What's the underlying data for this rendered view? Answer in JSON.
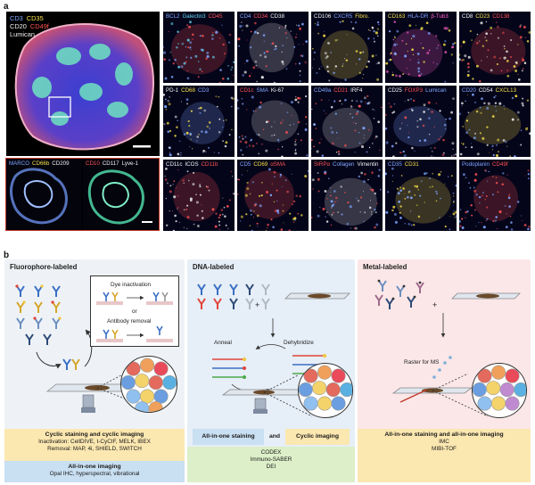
{
  "panel_a": {
    "letter": "a",
    "big_tile_labels": [
      [
        {
          "text": "CD3",
          "color": "blue"
        },
        {
          "text": "CD35",
          "color": "yellow"
        }
      ],
      [
        {
          "text": "CD20",
          "color": "white"
        },
        {
          "text": "CD49f",
          "color": "red"
        }
      ],
      [
        {
          "text": "Lumican",
          "color": "white"
        }
      ]
    ],
    "inset_tiles": [
      [
        {
          "text": "MARCO",
          "color": "blue"
        },
        {
          "text": "CD66b",
          "color": "yellow"
        },
        {
          "text": "CD209",
          "color": "white"
        }
      ],
      [
        {
          "text": "CD10",
          "color": "red"
        },
        {
          "text": "CD117",
          "color": "white"
        },
        {
          "text": "Lyve-1",
          "color": "white"
        }
      ]
    ],
    "grid_rows": [
      [
        [
          {
            "text": "BCL2",
            "color": "blue"
          },
          {
            "text": "Galectin3",
            "color": "cyan"
          },
          {
            "text": "CD45",
            "color": "red"
          }
        ],
        [
          {
            "text": "CD4",
            "color": "blue"
          },
          {
            "text": "CD34",
            "color": "red"
          },
          {
            "text": "CD38",
            "color": "white"
          }
        ],
        [
          {
            "text": "CD106",
            "color": "white"
          },
          {
            "text": "CXCR5",
            "color": "blue"
          },
          {
            "text": "Fibro.",
            "color": "yellow"
          }
        ],
        [
          {
            "text": "CD163",
            "color": "yellow"
          },
          {
            "text": "HLA-DR",
            "color": "blue"
          },
          {
            "text": "β-Tub3",
            "color": "pink"
          }
        ],
        [
          {
            "text": "CD8",
            "color": "white"
          },
          {
            "text": "CD23",
            "color": "yellow"
          },
          {
            "text": "CD138",
            "color": "red"
          }
        ]
      ],
      [
        [
          {
            "text": "PD-1",
            "color": "white"
          },
          {
            "text": "CD68",
            "color": "yellow"
          },
          {
            "text": "CD3",
            "color": "blue"
          }
        ],
        [
          {
            "text": "CD1c",
            "color": "red"
          },
          {
            "text": "SMA",
            "color": "blue"
          },
          {
            "text": "Ki-67",
            "color": "white"
          }
        ],
        [
          {
            "text": "CD49a",
            "color": "blue"
          },
          {
            "text": "CD21",
            "color": "red"
          },
          {
            "text": "IRF4",
            "color": "white"
          }
        ],
        [
          {
            "text": "CD25",
            "color": "white"
          },
          {
            "text": "FOXP3",
            "color": "red"
          },
          {
            "text": "Lumican",
            "color": "blue"
          }
        ],
        [
          {
            "text": "CD20",
            "color": "blue"
          },
          {
            "text": "CD54",
            "color": "white"
          },
          {
            "text": "CXCL13",
            "color": "yellow"
          }
        ]
      ],
      [
        [
          {
            "text": "CD11c",
            "color": "white"
          },
          {
            "text": "ICOS",
            "color": "white"
          },
          {
            "text": "CD11b",
            "color": "red"
          }
        ],
        [
          {
            "text": "CD5",
            "color": "blue"
          },
          {
            "text": "CD69",
            "color": "yellow"
          },
          {
            "text": "αSMA",
            "color": "red"
          }
        ],
        [
          {
            "text": "SIRPα",
            "color": "red"
          },
          {
            "text": "Collagen",
            "color": "blue"
          },
          {
            "text": "Vimentin",
            "color": "white"
          }
        ],
        [
          {
            "text": "CD35",
            "color": "blue"
          },
          {
            "text": "CD31",
            "color": "yellow"
          }
        ],
        [
          {
            "text": "Podoplanin",
            "color": "blue"
          },
          {
            "text": "CD49f",
            "color": "red"
          }
        ]
      ]
    ]
  },
  "panel_b": {
    "letter": "b",
    "fluorophore": {
      "title": "Fluorophore-labeled",
      "dye_inactivation": "Dye inactivation",
      "or": "or",
      "antibody_removal": "Antibody removal",
      "band1_title": "Cyclic staining and cyclic imaging",
      "band1_line1": "Inactivation: CellDIVE, t-CyCIF, MELK, IBEX",
      "band1_line2": "Removal: MAP, 4i, SHIELD, SWITCH",
      "band2_title": "All-in-one imaging",
      "band2_line1": "Opal IHC, hyperspectral, vibrational"
    },
    "dna": {
      "title": "DNA-labeled",
      "plus": "+",
      "anneal": "Anneal",
      "dehybridize": "Dehybridize",
      "band_left": "All-in-one staining",
      "band_and": "and",
      "band_right": "Cyclic imaging",
      "methods": [
        "CODEX",
        "Immuno-SABER",
        "DEI"
      ]
    },
    "metal": {
      "title": "Metal-labeled",
      "plus": "+",
      "raster": "Raster for MS",
      "band_title": "All-in-one staining and all-in-one imaging",
      "methods": [
        "IMC",
        "MIBI-TOF"
      ]
    }
  },
  "colors": {
    "fluor_bg": "#eef2f6",
    "dna_bg": "#e6eef7",
    "metal_bg": "#fbe7e8",
    "band_yellow": "#fbe7b0",
    "band_blue": "#c9dff2",
    "band_green": "#dcefc8",
    "marker_blue": "#7fa6ff",
    "marker_yellow": "#f5e04a",
    "marker_red": "#ff5252"
  }
}
